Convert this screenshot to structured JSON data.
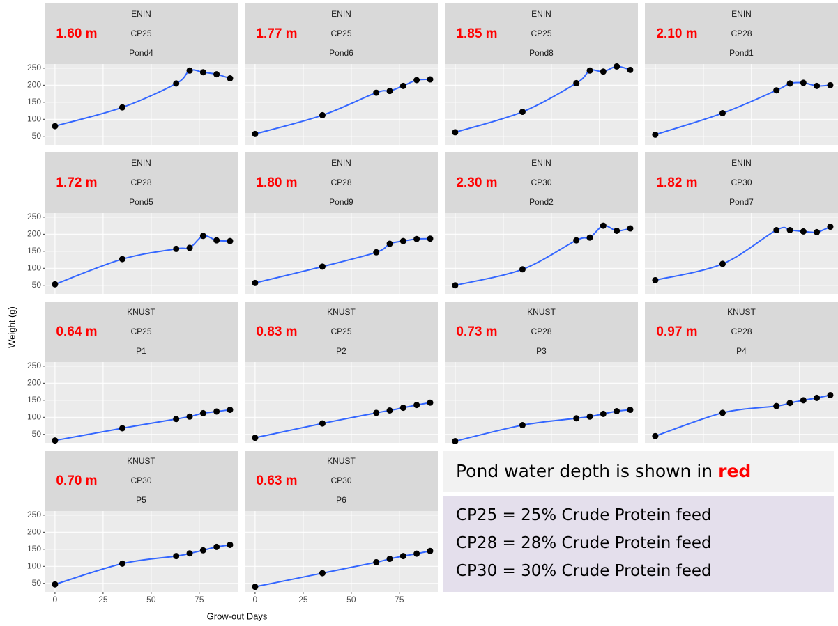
{
  "y_label": "Weight (g)",
  "x_label": "Grow-out Days",
  "notes": {
    "depth_text": "Pond water depth is shown in",
    "depth_highlight": "red",
    "feeds": [
      "CP25 = 25% Crude Protein feed",
      "CP28 = 28% Crude Protein feed",
      "CP30 = 30% Crude Protein feed"
    ]
  },
  "chart_data": [
    {
      "type": "scatter",
      "site": "ENIN",
      "feed": "CP25",
      "pond": "Pond4",
      "depth": "1.60 m",
      "x": [
        0,
        35,
        63,
        70,
        77,
        84,
        91
      ],
      "values": [
        80,
        135,
        205,
        243,
        238,
        232,
        220
      ],
      "xlim": [
        -5.4,
        95
      ],
      "ylim": [
        25,
        262
      ],
      "xticks": [
        0,
        25,
        50,
        75
      ],
      "yticks": [
        50,
        100,
        150,
        200,
        250
      ],
      "grid": true,
      "color": "#000000",
      "line_color": "#3366ff"
    },
    {
      "type": "scatter",
      "site": "ENIN",
      "feed": "CP25",
      "pond": "Pond6",
      "depth": "1.77 m",
      "x": [
        0,
        35,
        63,
        70,
        77,
        84,
        91
      ],
      "values": [
        57,
        112,
        178,
        183,
        198,
        215,
        217
      ],
      "xlim": [
        -5.4,
        95
      ],
      "ylim": [
        25,
        262
      ],
      "xticks": [
        0,
        25,
        50,
        75
      ],
      "yticks": [
        50,
        100,
        150,
        200,
        250
      ],
      "grid": true,
      "color": "#000000",
      "line_color": "#3366ff"
    },
    {
      "type": "scatter",
      "site": "ENIN",
      "feed": "CP25",
      "pond": "Pond8",
      "depth": "1.85 m",
      "x": [
        0,
        35,
        63,
        70,
        77,
        84,
        91
      ],
      "values": [
        62,
        122,
        206,
        243,
        240,
        255,
        245
      ],
      "xlim": [
        -5.4,
        95
      ],
      "ylim": [
        25,
        262
      ],
      "xticks": [
        0,
        25,
        50,
        75
      ],
      "yticks": [
        50,
        100,
        150,
        200,
        250
      ],
      "grid": true,
      "color": "#000000",
      "line_color": "#3366ff"
    },
    {
      "type": "scatter",
      "site": "ENIN",
      "feed": "CP28",
      "pond": "Pond1",
      "depth": "2.10 m",
      "x": [
        0,
        35,
        63,
        70,
        77,
        84,
        91
      ],
      "values": [
        55,
        118,
        185,
        205,
        207,
        198,
        200
      ],
      "xlim": [
        -5.4,
        95
      ],
      "ylim": [
        25,
        262
      ],
      "xticks": [
        0,
        25,
        50,
        75
      ],
      "yticks": [
        50,
        100,
        150,
        200,
        250
      ],
      "grid": true,
      "color": "#000000",
      "line_color": "#3366ff"
    },
    {
      "type": "scatter",
      "site": "ENIN",
      "feed": "CP28",
      "pond": "Pond5",
      "depth": "1.72 m",
      "x": [
        0,
        35,
        63,
        70,
        77,
        84,
        91
      ],
      "values": [
        53,
        127,
        157,
        160,
        195,
        182,
        180
      ],
      "xlim": [
        -5.4,
        95
      ],
      "ylim": [
        25,
        262
      ],
      "xticks": [
        0,
        25,
        50,
        75
      ],
      "yticks": [
        50,
        100,
        150,
        200,
        250
      ],
      "grid": true,
      "color": "#000000",
      "line_color": "#3366ff"
    },
    {
      "type": "scatter",
      "site": "ENIN",
      "feed": "CP28",
      "pond": "Pond9",
      "depth": "1.80 m",
      "x": [
        0,
        35,
        63,
        70,
        77,
        84,
        91
      ],
      "values": [
        57,
        105,
        147,
        172,
        180,
        186,
        187
      ],
      "xlim": [
        -5.4,
        95
      ],
      "ylim": [
        25,
        262
      ],
      "xticks": [
        0,
        25,
        50,
        75
      ],
      "yticks": [
        50,
        100,
        150,
        200,
        250
      ],
      "grid": true,
      "color": "#000000",
      "line_color": "#3366ff"
    },
    {
      "type": "scatter",
      "site": "ENIN",
      "feed": "CP30",
      "pond": "Pond2",
      "depth": "2.30 m",
      "x": [
        0,
        35,
        63,
        70,
        77,
        84,
        91
      ],
      "values": [
        50,
        97,
        182,
        190,
        225,
        210,
        217
      ],
      "xlim": [
        -5.4,
        95
      ],
      "ylim": [
        25,
        262
      ],
      "xticks": [
        0,
        25,
        50,
        75
      ],
      "yticks": [
        50,
        100,
        150,
        200,
        250
      ],
      "grid": true,
      "color": "#000000",
      "line_color": "#3366ff"
    },
    {
      "type": "scatter",
      "site": "ENIN",
      "feed": "CP30",
      "pond": "Pond7",
      "depth": "1.82 m",
      "x": [
        0,
        35,
        63,
        70,
        77,
        84,
        91
      ],
      "values": [
        65,
        113,
        212,
        212,
        208,
        206,
        222
      ],
      "xlim": [
        -5.4,
        95
      ],
      "ylim": [
        25,
        262
      ],
      "xticks": [
        0,
        25,
        50,
        75
      ],
      "yticks": [
        50,
        100,
        150,
        200,
        250
      ],
      "grid": true,
      "color": "#000000",
      "line_color": "#3366ff"
    },
    {
      "type": "scatter",
      "site": "KNUST",
      "feed": "CP25",
      "pond": "P1",
      "depth": "0.64 m",
      "x": [
        0,
        35,
        63,
        70,
        77,
        84,
        91
      ],
      "values": [
        32,
        68,
        95,
        102,
        112,
        117,
        122
      ],
      "xlim": [
        -5.4,
        95
      ],
      "ylim": [
        25,
        262
      ],
      "xticks": [
        0,
        25,
        50,
        75
      ],
      "yticks": [
        50,
        100,
        150,
        200,
        250
      ],
      "grid": true,
      "color": "#000000",
      "line_color": "#3366ff"
    },
    {
      "type": "scatter",
      "site": "KNUST",
      "feed": "CP25",
      "pond": "P2",
      "depth": "0.83 m",
      "x": [
        0,
        35,
        63,
        70,
        77,
        84,
        91
      ],
      "values": [
        40,
        82,
        113,
        120,
        128,
        136,
        143
      ],
      "xlim": [
        -5.4,
        95
      ],
      "ylim": [
        25,
        262
      ],
      "xticks": [
        0,
        25,
        50,
        75
      ],
      "yticks": [
        50,
        100,
        150,
        200,
        250
      ],
      "grid": true,
      "color": "#000000",
      "line_color": "#3366ff"
    },
    {
      "type": "scatter",
      "site": "KNUST",
      "feed": "CP28",
      "pond": "P3",
      "depth": "0.73 m",
      "x": [
        0,
        35,
        63,
        70,
        77,
        84,
        91
      ],
      "values": [
        30,
        77,
        97,
        102,
        110,
        118,
        122
      ],
      "xlim": [
        -5.4,
        95
      ],
      "ylim": [
        25,
        262
      ],
      "xticks": [
        0,
        25,
        50,
        75
      ],
      "yticks": [
        50,
        100,
        150,
        200,
        250
      ],
      "grid": true,
      "color": "#000000",
      "line_color": "#3366ff"
    },
    {
      "type": "scatter",
      "site": "KNUST",
      "feed": "CP28",
      "pond": "P4",
      "depth": "0.97 m",
      "x": [
        0,
        35,
        63,
        70,
        77,
        84,
        91
      ],
      "values": [
        45,
        113,
        133,
        142,
        150,
        157,
        165
      ],
      "xlim": [
        -5.4,
        95
      ],
      "ylim": [
        25,
        262
      ],
      "xticks": [
        0,
        25,
        50,
        75
      ],
      "yticks": [
        50,
        100,
        150,
        200,
        250
      ],
      "grid": true,
      "color": "#000000",
      "line_color": "#3366ff"
    },
    {
      "type": "scatter",
      "site": "KNUST",
      "feed": "CP30",
      "pond": "P5",
      "depth": "0.70 m",
      "x": [
        0,
        35,
        63,
        70,
        77,
        84,
        91
      ],
      "values": [
        47,
        108,
        130,
        138,
        147,
        157,
        163
      ],
      "xlim": [
        -5.4,
        95
      ],
      "ylim": [
        25,
        262
      ],
      "xticks": [
        0,
        25,
        50,
        75
      ],
      "yticks": [
        50,
        100,
        150,
        200,
        250
      ],
      "grid": true,
      "color": "#000000",
      "line_color": "#3366ff"
    },
    {
      "type": "scatter",
      "site": "KNUST",
      "feed": "CP30",
      "pond": "P6",
      "depth": "0.63 m",
      "x": [
        0,
        35,
        63,
        70,
        77,
        84,
        91
      ],
      "values": [
        40,
        80,
        112,
        122,
        130,
        137,
        145
      ],
      "xlim": [
        -5.4,
        95
      ],
      "ylim": [
        25,
        262
      ],
      "xticks": [
        0,
        25,
        50,
        75
      ],
      "yticks": [
        50,
        100,
        150,
        200,
        250
      ],
      "grid": true,
      "color": "#000000",
      "line_color": "#3366ff"
    }
  ]
}
